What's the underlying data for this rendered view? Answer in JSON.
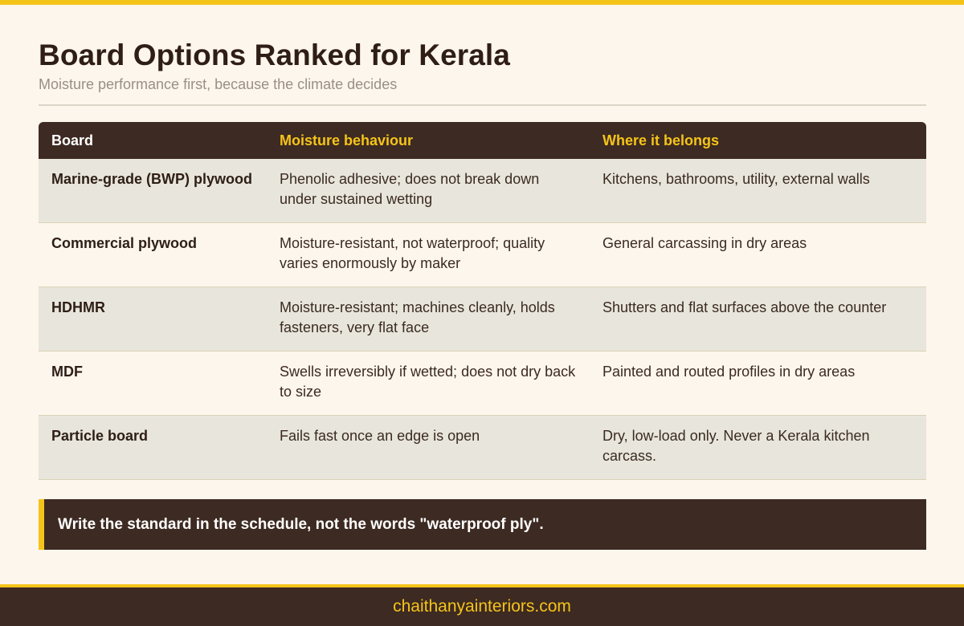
{
  "header": {
    "title": "Board Options Ranked for Kerala",
    "subtitle": "Moisture performance first, because the climate decides"
  },
  "table": {
    "columns": [
      "Board",
      "Moisture behaviour",
      "Where it belongs"
    ],
    "rows": [
      {
        "board": "Marine-grade (BWP) plywood",
        "moisture": "Phenolic adhesive; does not break down under sustained wetting",
        "belongs": "Kitchens, bathrooms, utility, external walls"
      },
      {
        "board": "Commercial plywood",
        "moisture": "Moisture-resistant, not waterproof; quality varies enormously by maker",
        "belongs": "General carcassing in dry areas"
      },
      {
        "board": "HDHMR",
        "moisture": "Moisture-resistant; machines cleanly, holds fasteners, very flat face",
        "belongs": "Shutters and flat surfaces above the counter"
      },
      {
        "board": "MDF",
        "moisture": "Swells irreversibly if wetted; does not dry back to size",
        "belongs": "Painted and routed profiles in dry areas"
      },
      {
        "board": "Particle board",
        "moisture": "Fails fast once an edge is open",
        "belongs": "Dry, low-load only. Never a Kerala kitchen carcass."
      }
    ]
  },
  "callout": {
    "text": "Write the standard in the schedule, not the words \"waterproof ply\"."
  },
  "footer": {
    "site": "chaithanyainteriors.com"
  },
  "colors": {
    "accent": "#f5c419",
    "dark": "#3d2a22",
    "background": "#fdf6ec",
    "row_shade": "#e8e6dc"
  }
}
